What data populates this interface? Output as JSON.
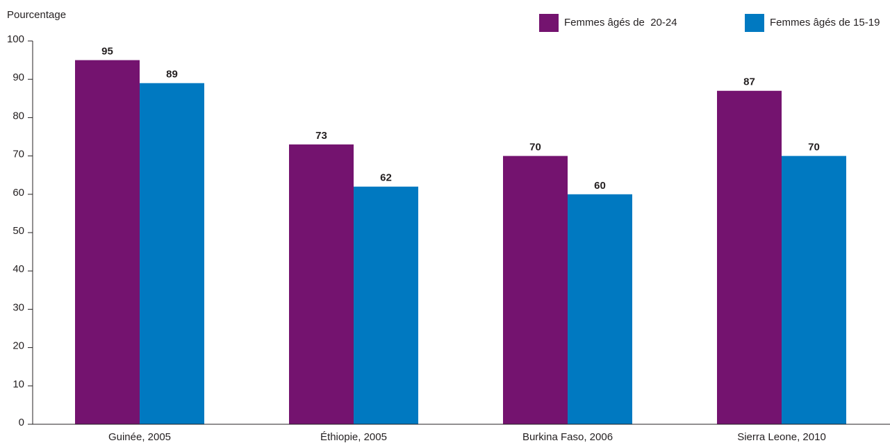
{
  "chart_data": {
    "type": "bar",
    "ylabel": "Pourcentage",
    "categories": [
      "Guinée, 2005",
      "Éthiopie, 2005",
      "Burkina Faso, 2006",
      "Sierra Leone, 2010"
    ],
    "series": [
      {
        "name": "Femmes âgés de  20-24",
        "color": "#74136f",
        "values": [
          95,
          73,
          70,
          87
        ]
      },
      {
        "name": "Femmes âgés de 15-19",
        "color": "#0079c1",
        "values": [
          89,
          62,
          60,
          70
        ]
      }
    ],
    "ylim": [
      0,
      100
    ],
    "yticks": [
      0,
      10,
      20,
      30,
      40,
      50,
      60,
      70,
      80,
      90,
      100
    ],
    "legend": "top-right",
    "grid": false
  }
}
